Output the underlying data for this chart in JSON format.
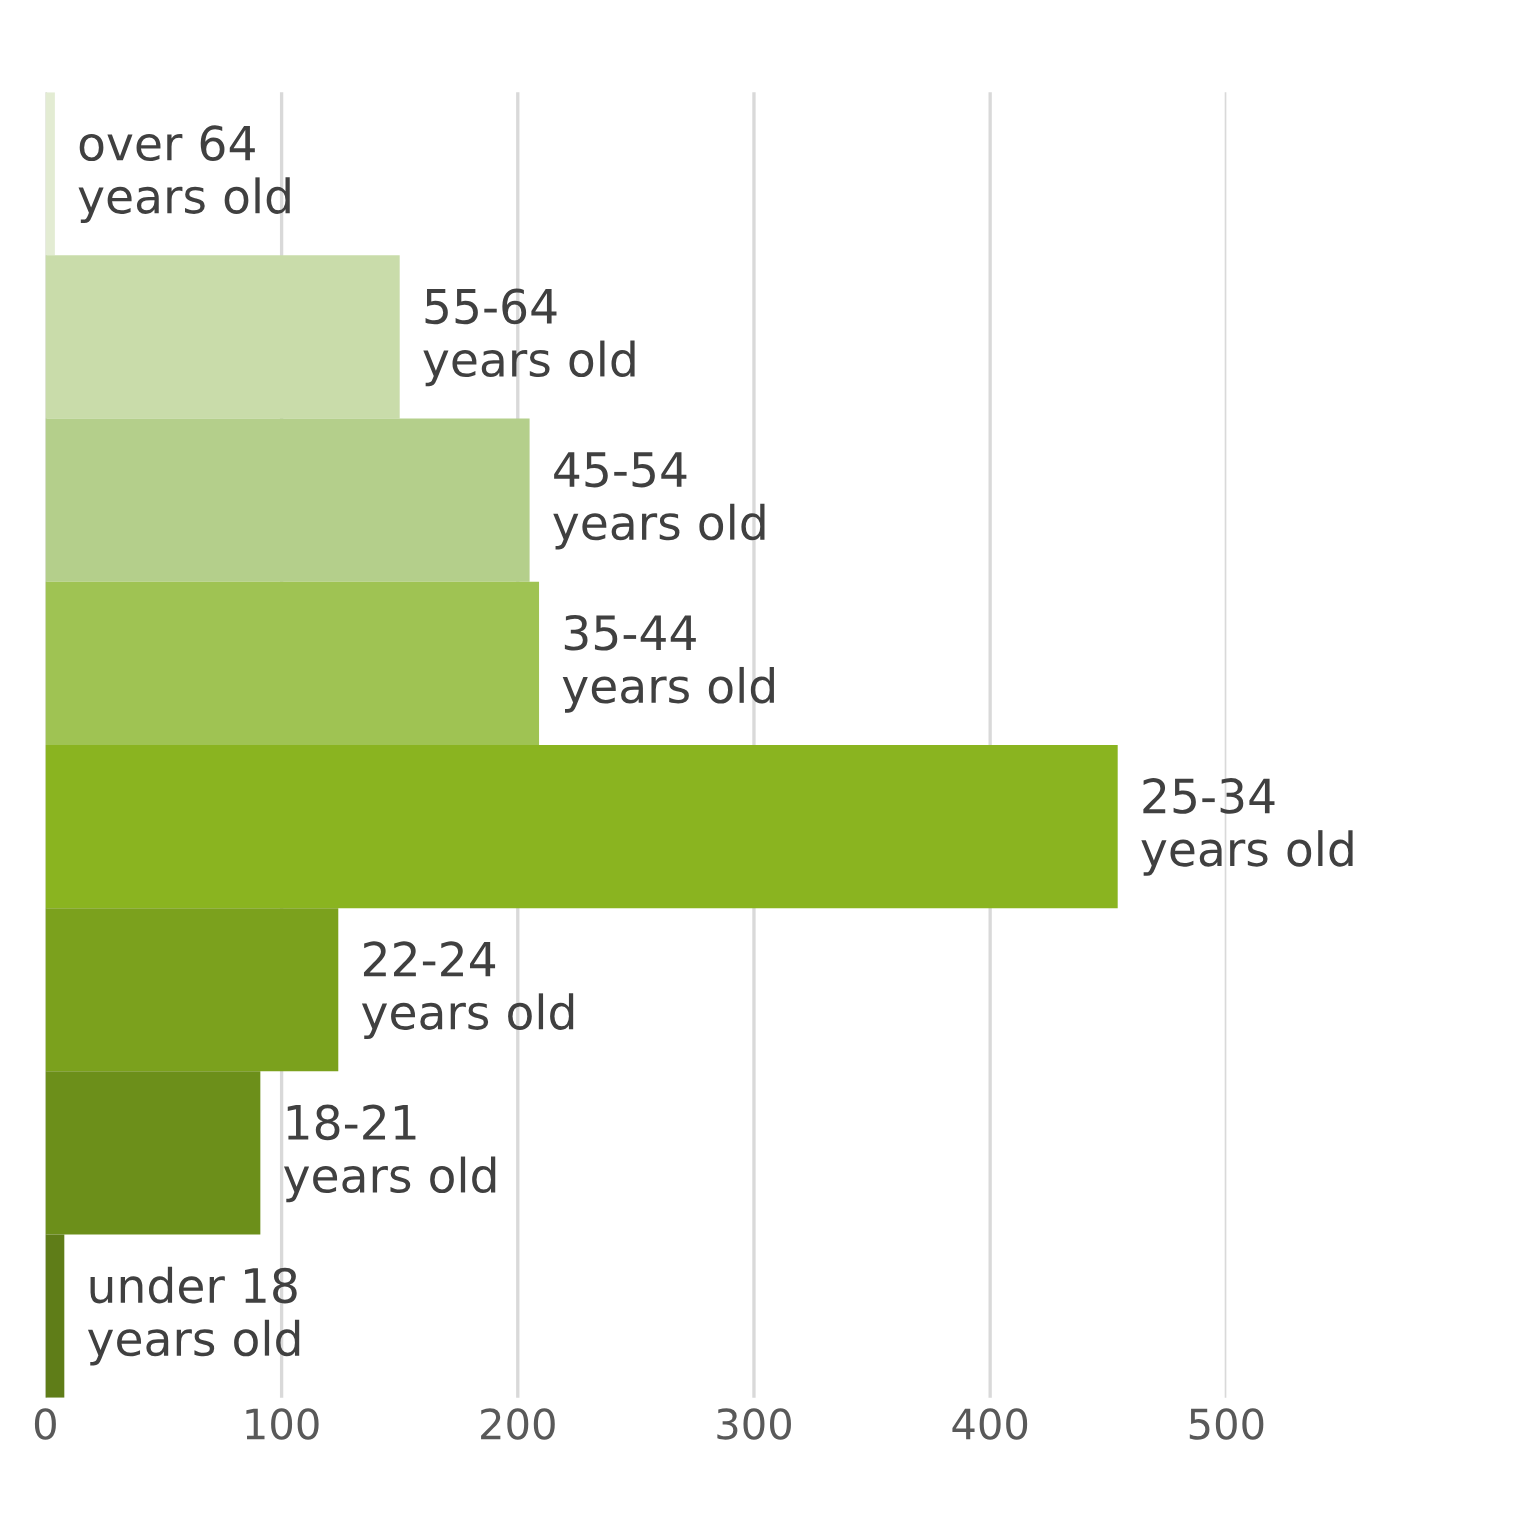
{
  "chart_data": {
    "type": "bar",
    "orientation": "horizontal",
    "categories": [
      "over 64\nyears old",
      "55-64\nyears old",
      "45-54\nyears old",
      "35-44\nyears old",
      "25-34\nyears old",
      "22-24\nyears old",
      "18-21\nyears old",
      "under 18\nyears old"
    ],
    "values": [
      4,
      150,
      205,
      209,
      454,
      124,
      91,
      8
    ],
    "colors": [
      "#e3ecd3",
      "#c9dcaa",
      "#b4cf8b",
      "#9fc353",
      "#8ab420",
      "#7ba11d",
      "#6c8f1a",
      "#5f7d18"
    ],
    "xlim": [
      0,
      500
    ],
    "xticks": [
      0,
      100,
      200,
      300,
      400,
      500
    ],
    "grid": "x",
    "tick_labels": "x",
    "legend": false
  }
}
